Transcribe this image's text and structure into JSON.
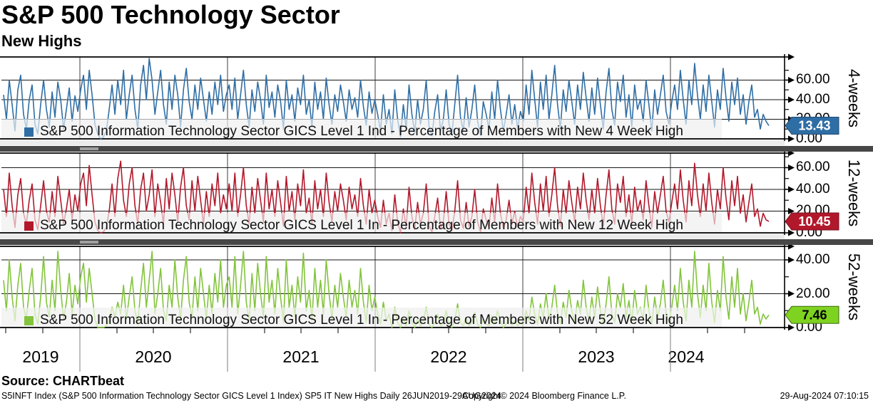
{
  "header": {
    "title": "S&P 500 Technology Sector",
    "subtitle": "New Highs"
  },
  "source_line": "Source: CHARTbeat",
  "footer": {
    "left": "S5INFT Index (S&P 500 Information Technology Sector GICS Level 1 Index) SP5 IT New Highs  Daily 26JUN2019-29AUG2024",
    "copyright": "Copyright© 2024 Bloomberg Finance L.P.",
    "timestamp": "29-Aug-2024 07:10:15"
  },
  "chart_data": {
    "type": "line",
    "title": "S&P 500 Technology Sector New Highs",
    "x_axis": {
      "start": "26JUN2019",
      "end": "29AUG2024",
      "frequency": "daily (approximated weekly samples)",
      "year_labels": [
        "2019",
        "2020",
        "2021",
        "2022",
        "2023",
        "2024"
      ]
    },
    "grid": "on",
    "legend_position": "inside-bottom-left",
    "panels": [
      {
        "id": "4-weeks",
        "axis_label": "4-weeks",
        "legend": "S&P 500 Information Technology Sector GICS Level 1 Ind - Percentage of Members with New 4 Week High",
        "color": "#2f6ea5",
        "badge_color": "#2f6ea5",
        "badge_border": "#1d4a75",
        "badge_text_color": "#ffffff",
        "last_value": 13.43,
        "ylim": [
          0,
          83.6
        ],
        "yticks": [
          0,
          20,
          40,
          60
        ],
        "minor_yticks": [
          10,
          30,
          50,
          70
        ],
        "values": [
          45,
          20,
          60,
          35,
          8,
          50,
          65,
          25,
          10,
          40,
          55,
          15,
          5,
          35,
          60,
          30,
          12,
          48,
          22,
          58,
          40,
          10,
          30,
          52,
          18,
          44,
          28,
          50,
          65,
          30,
          70,
          45,
          15,
          5,
          0,
          2,
          8,
          30,
          55,
          25,
          60,
          35,
          70,
          20,
          45,
          65,
          30,
          10,
          55,
          75,
          40,
          82,
          60,
          25,
          48,
          70,
          35,
          15,
          58,
          30,
          65,
          45,
          12,
          50,
          72,
          38,
          20,
          55,
          30,
          62,
          40,
          18,
          48,
          25,
          58,
          35,
          65,
          28,
          45,
          55,
          30,
          62,
          20,
          45,
          70,
          35,
          12,
          50,
          28,
          58,
          40,
          15,
          65,
          32,
          48,
          22,
          55,
          38,
          10,
          60,
          30,
          45,
          18,
          52,
          35,
          65,
          25,
          40,
          12,
          58,
          30,
          48,
          20,
          62,
          35,
          15,
          45,
          28,
          55,
          38,
          18,
          50,
          30,
          42,
          22,
          60,
          33,
          14,
          48,
          26,
          40,
          25,
          8,
          45,
          15,
          30,
          5,
          50,
          20,
          2,
          35,
          10,
          55,
          25,
          6,
          40,
          15,
          30,
          60,
          12,
          3,
          28,
          45,
          8,
          20,
          50,
          15,
          5,
          35,
          65,
          22,
          8,
          42,
          12,
          30,
          55,
          18,
          4,
          38,
          25,
          10,
          48,
          20,
          60,
          30,
          8,
          25,
          45,
          15,
          35,
          10,
          28,
          18,
          55,
          25,
          70,
          40,
          12,
          58,
          30,
          65,
          20,
          45,
          75,
          35,
          10,
          50,
          28,
          60,
          38,
          15,
          55,
          30,
          68,
          42,
          18,
          52,
          25,
          62,
          35,
          10,
          48,
          72,
          30,
          14,
          58,
          38,
          65,
          22,
          45,
          12,
          55,
          30,
          40,
          18,
          60,
          35,
          8,
          50,
          25,
          45,
          65,
          28,
          15,
          38,
          55,
          30,
          70,
          40,
          15,
          60,
          35,
          77,
          45,
          20,
          55,
          28,
          65,
          38,
          12,
          50,
          30,
          72,
          42,
          18,
          58,
          35,
          62,
          25,
          45,
          15,
          38,
          55,
          22,
          30,
          10,
          25,
          18,
          13.43
        ]
      },
      {
        "id": "12-weeks",
        "axis_label": "12-weeks",
        "legend": "S&P 500 Information Technology Sector GICS Level 1 In - Percentage of Members with New 12 Week High",
        "color": "#b2182b",
        "badge_color": "#b2182b",
        "badge_border": "#7a0f1d",
        "badge_text_color": "#ffffff",
        "last_value": 10.45,
        "ylim": [
          0,
          73.4
        ],
        "yticks": [
          0,
          20,
          40,
          60
        ],
        "minor_yticks": [
          10,
          30,
          50,
          70
        ],
        "values": [
          40,
          15,
          55,
          25,
          5,
          35,
          50,
          18,
          8,
          30,
          45,
          12,
          3,
          25,
          48,
          20,
          10,
          38,
          15,
          52,
          30,
          8,
          22,
          40,
          12,
          35,
          20,
          45,
          55,
          25,
          62,
          35,
          10,
          2,
          0,
          1,
          5,
          20,
          45,
          15,
          50,
          66,
          30,
          15,
          45,
          60,
          25,
          8,
          40,
          55,
          20,
          35,
          58,
          15,
          45,
          28,
          8,
          50,
          22,
          55,
          35,
          10,
          42,
          60,
          25,
          12,
          48,
          20,
          52,
          30,
          8,
          38,
          15,
          45,
          25,
          55,
          18,
          35,
          22,
          45,
          20,
          55,
          15,
          35,
          60,
          25,
          8,
          42,
          18,
          50,
          30,
          10,
          55,
          22,
          40,
          15,
          48,
          28,
          6,
          52,
          20,
          38,
          12,
          45,
          25,
          58,
          18,
          32,
          8,
          48,
          22,
          40,
          15,
          55,
          28,
          10,
          38,
          20,
          45,
          30,
          12,
          42,
          22,
          35,
          15,
          50,
          25,
          8,
          40,
          18,
          30,
          15,
          5,
          30,
          8,
          18,
          2,
          35,
          10,
          0,
          22,
          5,
          42,
          15,
          3,
          28,
          8,
          18,
          45,
          6,
          1,
          15,
          32,
          4,
          10,
          38,
          8,
          2,
          20,
          48,
          12,
          4,
          28,
          6,
          15,
          40,
          10,
          1,
          22,
          12,
          5,
          32,
          10,
          45,
          18,
          4,
          12,
          30,
          8,
          20,
          5,
          15,
          10,
          42,
          18,
          55,
          28,
          8,
          45,
          20,
          52,
          15,
          35,
          60,
          25,
          6,
          40,
          18,
          48,
          28,
          10,
          42,
          22,
          55,
          30,
          12,
          40,
          18,
          50,
          25,
          6,
          35,
          58,
          22,
          8,
          45,
          28,
          52,
          15,
          35,
          8,
          42,
          20,
          30,
          12,
          48,
          25,
          5,
          38,
          18,
          35,
          52,
          20,
          10,
          28,
          45,
          22,
          58,
          30,
          10,
          48,
          25,
          64,
          35,
          15,
          45,
          20,
          55,
          28,
          8,
          40,
          22,
          60,
          32,
          12,
          48,
          25,
          52,
          18,
          35,
          10,
          28,
          45,
          15,
          22,
          6,
          18,
          12,
          10.45
        ]
      },
      {
        "id": "52-weeks",
        "axis_label": "52-weeks",
        "legend": "S&P 500 Information Technology Sector GICS Level 1 In - Percentage of Members with New 52 Week High",
        "color": "#82c43c",
        "badge_color": "#7ed321",
        "badge_border": "#3d6a10",
        "badge_text_color": "#000000",
        "last_value": 7.46,
        "ylim": [
          0,
          48
        ],
        "yticks": [
          0,
          20,
          40
        ],
        "minor_yticks": [
          10,
          30
        ],
        "values": [
          28,
          10,
          40,
          18,
          4,
          25,
          38,
          12,
          5,
          22,
          35,
          8,
          2,
          18,
          42,
          15,
          6,
          28,
          10,
          45,
          22,
          5,
          15,
          32,
          8,
          25,
          14,
          30,
          38,
          15,
          35,
          20,
          5,
          0,
          0,
          0,
          1,
          4,
          12,
          6,
          15,
          8,
          25,
          5,
          18,
          30,
          10,
          2,
          22,
          38,
          12,
          28,
          45,
          8,
          20,
          35,
          10,
          4,
          25,
          12,
          40,
          18,
          5,
          28,
          42,
          15,
          6,
          30,
          10,
          35,
          20,
          5,
          25,
          8,
          32,
          15,
          40,
          12,
          25,
          30,
          12,
          42,
          8,
          25,
          45,
          15,
          4,
          32,
          10,
          38,
          20,
          6,
          42,
          15,
          28,
          8,
          35,
          18,
          3,
          40,
          12,
          25,
          6,
          30,
          15,
          44,
          10,
          22,
          4,
          35,
          12,
          28,
          8,
          40,
          20,
          5,
          25,
          12,
          32,
          18,
          6,
          28,
          12,
          22,
          8,
          35,
          15,
          3,
          25,
          10,
          18,
          8,
          2,
          15,
          4,
          8,
          0,
          12,
          3,
          0,
          6,
          1,
          10,
          3,
          0,
          5,
          1,
          4,
          12,
          2,
          0,
          3,
          8,
          1,
          2,
          10,
          2,
          0,
          4,
          14,
          3,
          1,
          6,
          1,
          3,
          9,
          2,
          0,
          5,
          2,
          1,
          7,
          2,
          10,
          4,
          0,
          2,
          6,
          1,
          4,
          1,
          3,
          2,
          10,
          4,
          18,
          8,
          2,
          14,
          6,
          20,
          5,
          12,
          25,
          8,
          2,
          15,
          6,
          22,
          10,
          3,
          16,
          8,
          28,
          12,
          4,
          18,
          6,
          24,
          10,
          2,
          14,
          30,
          8,
          3,
          20,
          12,
          26,
          6,
          16,
          3,
          22,
          8,
          12,
          4,
          25,
          10,
          2,
          18,
          6,
          14,
          28,
          8,
          3,
          12,
          25,
          10,
          35,
          15,
          4,
          28,
          12,
          45,
          20,
          6,
          25,
          10,
          38,
          15,
          3,
          22,
          10,
          42,
          18,
          5,
          30,
          12,
          35,
          8,
          20,
          4,
          15,
          28,
          8,
          12,
          2,
          8,
          5,
          7.46
        ]
      }
    ]
  }
}
